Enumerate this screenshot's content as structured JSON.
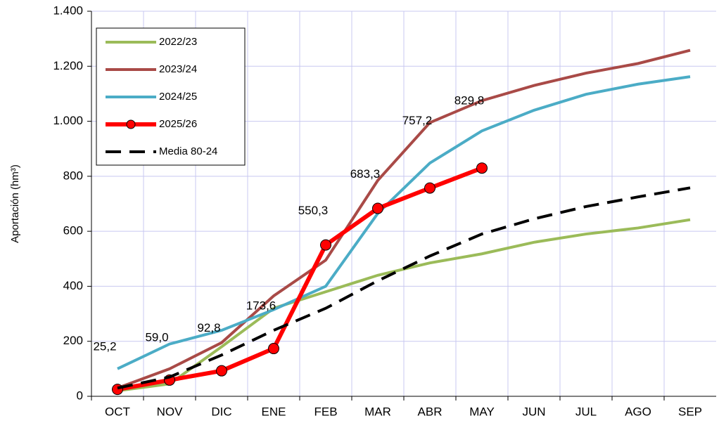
{
  "chart_data": {
    "type": "line",
    "y_label": "Aportación (hm³)",
    "categories": [
      "OCT",
      "NOV",
      "DIC",
      "ENE",
      "FEB",
      "MAR",
      "ABR",
      "MAY",
      "JUN",
      "JUL",
      "AGO",
      "SEP"
    ],
    "series": [
      {
        "name": "2022/23",
        "color": "#9bbb59",
        "values": [
          20,
          45,
          180,
          320,
          380,
          440,
          485,
          518,
          560,
          590,
          612,
          642
        ]
      },
      {
        "name": "2023/24",
        "color": "#a94a47",
        "values": [
          30,
          100,
          195,
          365,
          495,
          785,
          995,
          1075,
          1130,
          1175,
          1210,
          1258
        ]
      },
      {
        "name": "2024/25",
        "color": "#4bacc6",
        "values": [
          100,
          190,
          240,
          315,
          400,
          665,
          848,
          965,
          1040,
          1098,
          1135,
          1162
        ]
      },
      {
        "name": "2025/26",
        "color": "#ff0000",
        "marker": true,
        "values": [
          25.2,
          59.0,
          92.8,
          173.6,
          550.3,
          683.3,
          757.2,
          829.8,
          null,
          null,
          null,
          null
        ],
        "value_labels": [
          "25,2",
          "59,0",
          "92,8",
          "173,6",
          "550,3",
          "683,3",
          "757,2",
          "829,8",
          null,
          null,
          null,
          null
        ]
      },
      {
        "name": "Media 80-24",
        "color": "#000000",
        "dashed": true,
        "values": [
          30,
          70,
          150,
          240,
          320,
          420,
          510,
          590,
          645,
          690,
          725,
          758
        ]
      }
    ],
    "ylim": [
      0,
      1400
    ],
    "yticks": [
      0,
      200,
      400,
      600,
      800,
      {
        "value": 1000,
        "label": "1.000"
      },
      {
        "value": 1200,
        "label": "1.200"
      },
      {
        "value": 1400,
        "label": "1.400"
      }
    ],
    "grid": true,
    "legend": "upper left"
  }
}
